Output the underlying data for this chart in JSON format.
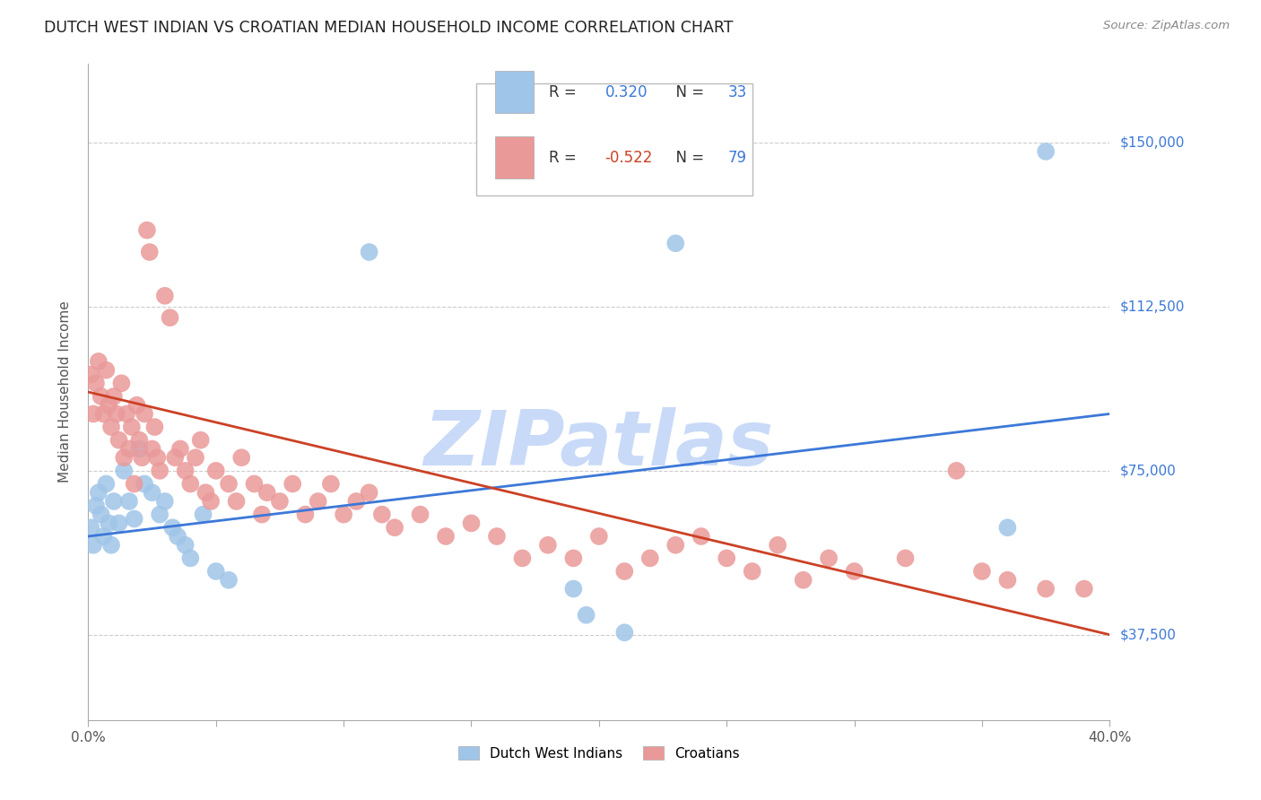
{
  "title": "DUTCH WEST INDIAN VS CROATIAN MEDIAN HOUSEHOLD INCOME CORRELATION CHART",
  "source": "Source: ZipAtlas.com",
  "ylabel": "Median Household Income",
  "yticks": [
    37500,
    75000,
    112500,
    150000
  ],
  "ytick_labels": [
    "$37,500",
    "$75,000",
    "$112,500",
    "$150,000"
  ],
  "ymin": 18000,
  "ymax": 168000,
  "xmin": 0.0,
  "xmax": 0.4,
  "legend_r_blue": "0.320",
  "legend_n_blue": "33",
  "legend_r_pink": "-0.522",
  "legend_n_pink": "79",
  "blue_color": "#9fc5e8",
  "pink_color": "#ea9999",
  "blue_line_color": "#3c78d8",
  "pink_line_color": "#cc4125",
  "watermark_color": "#c9daf8",
  "blue_scatter": [
    [
      0.001,
      62000
    ],
    [
      0.002,
      58000
    ],
    [
      0.003,
      67000
    ],
    [
      0.004,
      70000
    ],
    [
      0.005,
      65000
    ],
    [
      0.006,
      60000
    ],
    [
      0.007,
      72000
    ],
    [
      0.008,
      63000
    ],
    [
      0.009,
      58000
    ],
    [
      0.01,
      68000
    ],
    [
      0.012,
      63000
    ],
    [
      0.014,
      75000
    ],
    [
      0.016,
      68000
    ],
    [
      0.018,
      64000
    ],
    [
      0.02,
      80000
    ],
    [
      0.022,
      72000
    ],
    [
      0.025,
      70000
    ],
    [
      0.028,
      65000
    ],
    [
      0.03,
      68000
    ],
    [
      0.033,
      62000
    ],
    [
      0.035,
      60000
    ],
    [
      0.038,
      58000
    ],
    [
      0.04,
      55000
    ],
    [
      0.045,
      65000
    ],
    [
      0.05,
      52000
    ],
    [
      0.055,
      50000
    ],
    [
      0.11,
      125000
    ],
    [
      0.19,
      48000
    ],
    [
      0.195,
      42000
    ],
    [
      0.21,
      38000
    ],
    [
      0.23,
      127000
    ],
    [
      0.36,
      62000
    ],
    [
      0.375,
      148000
    ]
  ],
  "pink_scatter": [
    [
      0.001,
      97000
    ],
    [
      0.002,
      88000
    ],
    [
      0.003,
      95000
    ],
    [
      0.004,
      100000
    ],
    [
      0.005,
      92000
    ],
    [
      0.006,
      88000
    ],
    [
      0.007,
      98000
    ],
    [
      0.008,
      90000
    ],
    [
      0.009,
      85000
    ],
    [
      0.01,
      92000
    ],
    [
      0.011,
      88000
    ],
    [
      0.012,
      82000
    ],
    [
      0.013,
      95000
    ],
    [
      0.014,
      78000
    ],
    [
      0.015,
      88000
    ],
    [
      0.016,
      80000
    ],
    [
      0.017,
      85000
    ],
    [
      0.018,
      72000
    ],
    [
      0.019,
      90000
    ],
    [
      0.02,
      82000
    ],
    [
      0.021,
      78000
    ],
    [
      0.022,
      88000
    ],
    [
      0.023,
      130000
    ],
    [
      0.024,
      125000
    ],
    [
      0.025,
      80000
    ],
    [
      0.026,
      85000
    ],
    [
      0.027,
      78000
    ],
    [
      0.028,
      75000
    ],
    [
      0.03,
      115000
    ],
    [
      0.032,
      110000
    ],
    [
      0.034,
      78000
    ],
    [
      0.036,
      80000
    ],
    [
      0.038,
      75000
    ],
    [
      0.04,
      72000
    ],
    [
      0.042,
      78000
    ],
    [
      0.044,
      82000
    ],
    [
      0.046,
      70000
    ],
    [
      0.048,
      68000
    ],
    [
      0.05,
      75000
    ],
    [
      0.055,
      72000
    ],
    [
      0.058,
      68000
    ],
    [
      0.06,
      78000
    ],
    [
      0.065,
      72000
    ],
    [
      0.068,
      65000
    ],
    [
      0.07,
      70000
    ],
    [
      0.075,
      68000
    ],
    [
      0.08,
      72000
    ],
    [
      0.085,
      65000
    ],
    [
      0.09,
      68000
    ],
    [
      0.095,
      72000
    ],
    [
      0.1,
      65000
    ],
    [
      0.105,
      68000
    ],
    [
      0.11,
      70000
    ],
    [
      0.115,
      65000
    ],
    [
      0.12,
      62000
    ],
    [
      0.13,
      65000
    ],
    [
      0.14,
      60000
    ],
    [
      0.15,
      63000
    ],
    [
      0.16,
      60000
    ],
    [
      0.17,
      55000
    ],
    [
      0.18,
      58000
    ],
    [
      0.19,
      55000
    ],
    [
      0.2,
      60000
    ],
    [
      0.21,
      52000
    ],
    [
      0.22,
      55000
    ],
    [
      0.23,
      58000
    ],
    [
      0.24,
      60000
    ],
    [
      0.25,
      55000
    ],
    [
      0.26,
      52000
    ],
    [
      0.27,
      58000
    ],
    [
      0.28,
      50000
    ],
    [
      0.29,
      55000
    ],
    [
      0.3,
      52000
    ],
    [
      0.32,
      55000
    ],
    [
      0.34,
      75000
    ],
    [
      0.35,
      52000
    ],
    [
      0.36,
      50000
    ],
    [
      0.375,
      48000
    ],
    [
      0.39,
      48000
    ]
  ],
  "blue_trend": [
    0.0,
    0.4,
    60000,
    88000
  ],
  "pink_trend": [
    0.0,
    0.4,
    93000,
    37500
  ]
}
